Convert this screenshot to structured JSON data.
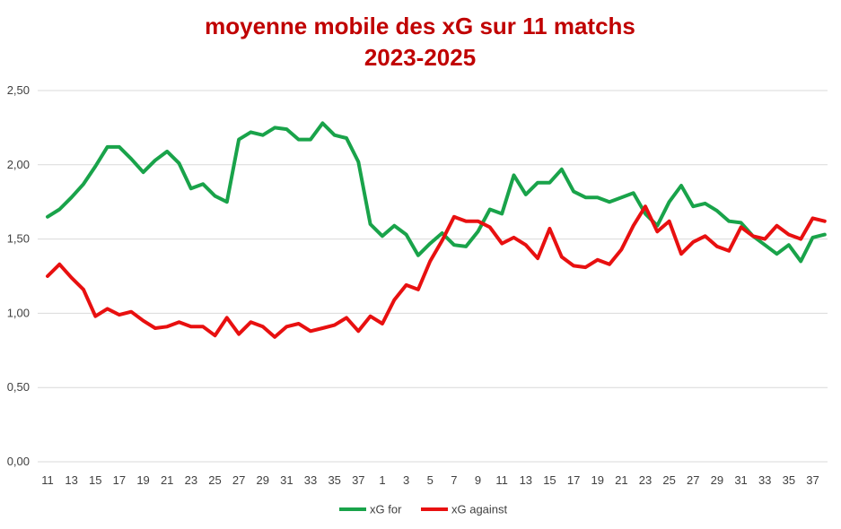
{
  "chart_data": {
    "type": "line",
    "title_lines": [
      "moyenne mobile des xG sur 11 matchs",
      "2023-2025"
    ],
    "ylim": [
      0,
      2.5
    ],
    "y_ticks": [
      "0,00",
      "0,50",
      "1,00",
      "1,50",
      "2,00",
      "2,50"
    ],
    "y_tick_values": [
      0,
      0.5,
      1.0,
      1.5,
      2.0,
      2.5
    ],
    "grid": true,
    "legend_position": "bottom",
    "x": [
      11,
      12,
      13,
      14,
      15,
      16,
      17,
      18,
      19,
      20,
      21,
      22,
      23,
      24,
      25,
      26,
      27,
      28,
      29,
      30,
      31,
      32,
      33,
      34,
      35,
      36,
      37,
      38,
      1,
      2,
      3,
      4,
      5,
      6,
      7,
      8,
      9,
      10,
      11,
      12,
      13,
      14,
      15,
      16,
      17,
      18,
      19,
      20,
      21,
      22,
      23,
      24,
      25,
      26,
      27,
      28,
      29,
      30,
      31,
      32,
      33,
      34,
      35,
      36,
      37,
      38
    ],
    "x_tick_labels": [
      "11",
      "13",
      "15",
      "17",
      "19",
      "21",
      "23",
      "25",
      "27",
      "29",
      "31",
      "33",
      "35",
      "37",
      "1",
      "3",
      "5",
      "7",
      "9",
      "11",
      "13",
      "15",
      "17",
      "19",
      "21",
      "23",
      "25",
      "27",
      "29",
      "31",
      "33",
      "35",
      "37"
    ],
    "series": [
      {
        "name": "xG for",
        "color": "#19a34a",
        "values": [
          1.65,
          1.7,
          1.78,
          1.87,
          1.99,
          2.12,
          2.12,
          2.04,
          1.95,
          2.03,
          2.09,
          2.01,
          1.84,
          1.87,
          1.79,
          1.75,
          2.17,
          2.22,
          2.2,
          2.25,
          2.24,
          2.17,
          2.17,
          2.28,
          2.2,
          2.18,
          2.02,
          1.6,
          1.52,
          1.59,
          1.53,
          1.39,
          1.47,
          1.54,
          1.46,
          1.45,
          1.55,
          1.7,
          1.67,
          1.93,
          1.8,
          1.88,
          1.88,
          1.97,
          1.82,
          1.78,
          1.78,
          1.75,
          1.78,
          1.81,
          1.67,
          1.59,
          1.75,
          1.86,
          1.72,
          1.74,
          1.69,
          1.62,
          1.61,
          1.52,
          1.46,
          1.4,
          1.46,
          1.35,
          1.51,
          1.53
        ]
      },
      {
        "name": "xG against",
        "color": "#e81010",
        "values": [
          1.25,
          1.33,
          1.24,
          1.16,
          0.98,
          1.03,
          0.99,
          1.01,
          0.95,
          0.9,
          0.91,
          0.94,
          0.91,
          0.91,
          0.85,
          0.97,
          0.86,
          0.94,
          0.91,
          0.84,
          0.91,
          0.93,
          0.88,
          0.9,
          0.92,
          0.97,
          0.88,
          0.98,
          0.93,
          1.09,
          1.19,
          1.16,
          1.35,
          1.49,
          1.65,
          1.62,
          1.62,
          1.58,
          1.47,
          1.51,
          1.46,
          1.37,
          1.57,
          1.38,
          1.32,
          1.31,
          1.36,
          1.33,
          1.43,
          1.59,
          1.72,
          1.55,
          1.62,
          1.4,
          1.48,
          1.52,
          1.45,
          1.42,
          1.58,
          1.52,
          1.5,
          1.59,
          1.53,
          1.5,
          1.64,
          1.62
        ]
      }
    ]
  }
}
